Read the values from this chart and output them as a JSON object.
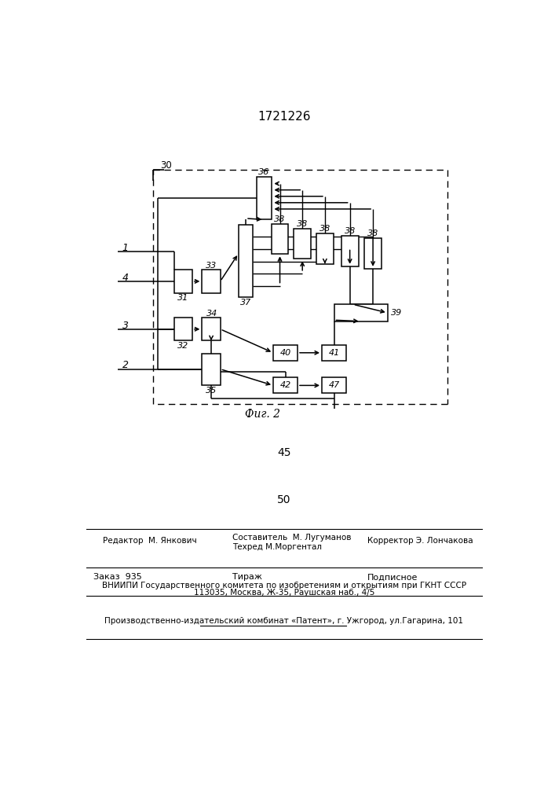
{
  "title": "1721226",
  "fig_label": "Фиг. 2",
  "page_num_45": "45",
  "page_num_50": "50",
  "editor_line": "Редактор  М. Янкович",
  "composer_line1": "Составитель  М. Лугуманов",
  "composer_line2": "Техред М.Моргентал",
  "corrector_line": "Корректор Э. Лончакова",
  "order_line": "Заказ  935",
  "tirazh_line": "Тираж",
  "podpisnoe_line": "Подписное",
  "vniiipi_line": "ВНИИПИ Государственного комитета по изобретениям и открытиям при ГКНТ СССР",
  "address_line": "113035, Москва, Ж-35, Раушская наб., 4/5",
  "patent_line": "Производственно-издательский комбинат «Патент», г. Ужгород, ул.Гагарина, 101"
}
